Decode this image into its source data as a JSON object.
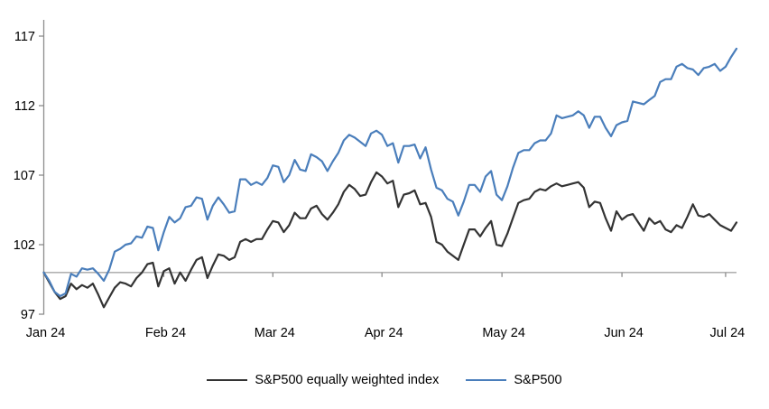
{
  "chart_data": {
    "type": "line",
    "title": "",
    "x_axis": {
      "tick_labels": [
        "Jan 24",
        "Feb 24",
        "Mar 24",
        "Apr 24",
        "May 24",
        "Jun 24",
        "Jul 24"
      ],
      "tick_point_indices": [
        0,
        22,
        42,
        62,
        84,
        106,
        125
      ]
    },
    "y_axis": {
      "tick_values": [
        117,
        112,
        107,
        102,
        97
      ],
      "min": 97,
      "max": 117,
      "baseline_value": 100
    },
    "grid": "horizontal-baseline-only",
    "legend_position": "bottom-center",
    "series": [
      {
        "name": "S&P500 equally weighted index",
        "color": "#333333",
        "values": [
          100,
          99.3,
          98.6,
          98.1,
          98.3,
          99.2,
          98.8,
          99.1,
          98.9,
          99.2,
          98.4,
          97.5,
          98.2,
          98.9,
          99.3,
          99.2,
          99,
          99.6,
          100,
          100.6,
          100.7,
          99,
          100.1,
          100.3,
          99.2,
          100,
          99.4,
          100.2,
          100.9,
          101.1,
          99.6,
          100.5,
          101.3,
          101.2,
          100.9,
          101.1,
          102.2,
          102.4,
          102.2,
          102.4,
          102.4,
          103.1,
          103.7,
          103.6,
          102.9,
          103.4,
          104.3,
          103.9,
          103.9,
          104.6,
          104.8,
          104.2,
          103.8,
          104.3,
          104.9,
          105.8,
          106.3,
          106,
          105.5,
          105.6,
          106.5,
          107.2,
          106.9,
          106.4,
          106.6,
          104.7,
          105.6,
          105.7,
          105.9,
          104.9,
          105,
          104,
          102.2,
          102,
          101.5,
          101.2,
          100.9,
          102,
          103.1,
          103.1,
          102.6,
          103.2,
          103.7,
          102,
          101.9,
          102.8,
          103.9,
          105,
          105.2,
          105.3,
          105.8,
          106,
          105.9,
          106.2,
          106.4,
          106.2,
          106.3,
          106.4,
          106.5,
          106.1,
          104.7,
          105.1,
          105,
          103.9,
          103,
          104.4,
          103.8,
          104.1,
          104.2,
          103.6,
          103,
          103.9,
          103.5,
          103.7,
          103.1,
          102.9,
          103.4,
          103.2,
          104,
          104.9,
          104.1,
          104,
          104.2,
          103.8,
          103.4,
          103.2,
          103,
          103.6
        ]
      },
      {
        "name": "S&P500",
        "color": "#4a7ebb",
        "values": [
          100,
          99.4,
          98.6,
          98.3,
          98.5,
          99.9,
          99.7,
          100.3,
          100.2,
          100.3,
          99.9,
          99.4,
          100.2,
          101.5,
          101.7,
          102,
          102.1,
          102.6,
          102.5,
          103.3,
          103.2,
          101.6,
          102.9,
          104,
          103.6,
          103.9,
          104.7,
          104.8,
          105.4,
          105.3,
          103.8,
          104.8,
          105.4,
          104.9,
          104.3,
          104.4,
          106.7,
          106.7,
          106.3,
          106.5,
          106.3,
          106.8,
          107.7,
          107.6,
          106.5,
          107,
          108.1,
          107.4,
          107.3,
          108.5,
          108.3,
          108,
          107.3,
          108,
          108.6,
          109.5,
          109.9,
          109.7,
          109.4,
          109.1,
          110,
          110.2,
          109.9,
          109.1,
          109.3,
          107.9,
          109.1,
          109.1,
          109.2,
          108.2,
          109,
          107.4,
          106.1,
          105.9,
          105.3,
          105.1,
          104.1,
          105.1,
          106.3,
          106.3,
          105.8,
          106.9,
          107.3,
          105.6,
          105.2,
          106.2,
          107.5,
          108.6,
          108.8,
          108.8,
          109.3,
          109.5,
          109.5,
          110,
          111.3,
          111.1,
          111.2,
          111.3,
          111.6,
          111.3,
          110.4,
          111.2,
          111.2,
          110.4,
          109.8,
          110.6,
          110.8,
          110.9,
          112.3,
          112.2,
          112.1,
          112.4,
          112.7,
          113.7,
          113.9,
          113.9,
          114.8,
          115,
          114.7,
          114.6,
          114.2,
          114.7,
          114.8,
          115,
          114.5,
          114.8,
          115.5,
          116.1
        ]
      }
    ]
  },
  "colors": {
    "axis": "#8c8c8c",
    "baseline": "#a6a6a6",
    "tick": "#8c8c8c",
    "label_text": "#000000",
    "background": "#ffffff"
  }
}
